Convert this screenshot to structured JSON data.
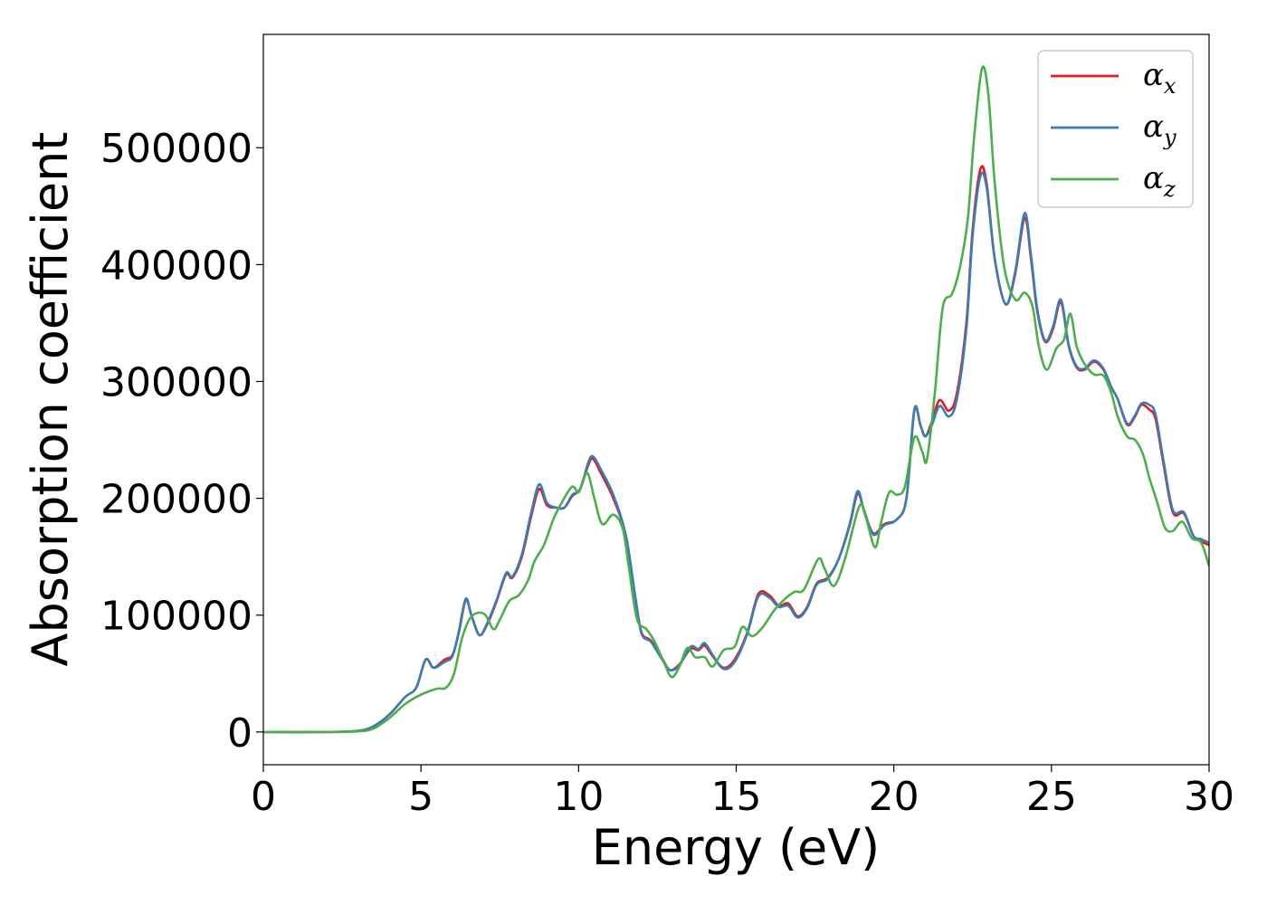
{
  "chart_data": {
    "type": "line",
    "xlabel": "Energy (eV)",
    "ylabel": "Absorption coefficient",
    "xlim": [
      0,
      30
    ],
    "ylim": [
      -28000,
      597000
    ],
    "xticks": [
      0,
      5,
      10,
      15,
      20,
      25,
      30
    ],
    "yticks": [
      0,
      100000,
      200000,
      300000,
      400000,
      500000
    ],
    "grid": false,
    "legend_position": "upper right",
    "series": [
      {
        "name": "αx",
        "base": "α",
        "sub": "x",
        "color": "#e41a1c",
        "points": [
          [
            0,
            0
          ],
          [
            2,
            0
          ],
          [
            3,
            1000
          ],
          [
            3.5,
            5000
          ],
          [
            4,
            15000
          ],
          [
            4.5,
            30000
          ],
          [
            4.85,
            38000
          ],
          [
            5.15,
            62000
          ],
          [
            5.4,
            55000
          ],
          [
            5.75,
            62000
          ],
          [
            6,
            66000
          ],
          [
            6.2,
            85000
          ],
          [
            6.42,
            113000
          ],
          [
            6.6,
            100000
          ],
          [
            6.85,
            83000
          ],
          [
            7.1,
            92000
          ],
          [
            7.4,
            112000
          ],
          [
            7.7,
            135000
          ],
          [
            7.9,
            132000
          ],
          [
            8.2,
            150000
          ],
          [
            8.5,
            185000
          ],
          [
            8.75,
            208000
          ],
          [
            9,
            194000
          ],
          [
            9.3,
            192000
          ],
          [
            9.55,
            192000
          ],
          [
            9.8,
            202000
          ],
          [
            10.05,
            208000
          ],
          [
            10.3,
            228000
          ],
          [
            10.45,
            234000
          ],
          [
            10.7,
            222000
          ],
          [
            11.1,
            200000
          ],
          [
            11.5,
            168000
          ],
          [
            11.8,
            115000
          ],
          [
            12,
            85000
          ],
          [
            12.3,
            78000
          ],
          [
            12.65,
            63000
          ],
          [
            12.9,
            53000
          ],
          [
            13.2,
            58000
          ],
          [
            13.55,
            71000
          ],
          [
            13.8,
            70000
          ],
          [
            14,
            74000
          ],
          [
            14.25,
            65000
          ],
          [
            14.6,
            55000
          ],
          [
            14.95,
            62000
          ],
          [
            15.35,
            85000
          ],
          [
            15.7,
            118000
          ],
          [
            16.05,
            117000
          ],
          [
            16.35,
            108000
          ],
          [
            16.65,
            110000
          ],
          [
            16.95,
            99000
          ],
          [
            17.25,
            107000
          ],
          [
            17.55,
            127000
          ],
          [
            17.9,
            132000
          ],
          [
            18.25,
            148000
          ],
          [
            18.6,
            177000
          ],
          [
            18.85,
            204000
          ],
          [
            19.05,
            190000
          ],
          [
            19.35,
            170000
          ],
          [
            19.7,
            178000
          ],
          [
            20.1,
            182000
          ],
          [
            20.4,
            200000
          ],
          [
            20.65,
            275000
          ],
          [
            20.85,
            262000
          ],
          [
            21,
            253000
          ],
          [
            21.2,
            265000
          ],
          [
            21.45,
            284000
          ],
          [
            21.75,
            275000
          ],
          [
            22,
            290000
          ],
          [
            22.3,
            350000
          ],
          [
            22.5,
            430000
          ],
          [
            22.75,
            482000
          ],
          [
            22.95,
            468000
          ],
          [
            23.2,
            405000
          ],
          [
            23.55,
            366000
          ],
          [
            23.85,
            392000
          ],
          [
            24.15,
            440000
          ],
          [
            24.35,
            405000
          ],
          [
            24.55,
            360000
          ],
          [
            24.8,
            334000
          ],
          [
            25.05,
            345000
          ],
          [
            25.3,
            368000
          ],
          [
            25.55,
            330000
          ],
          [
            25.8,
            312000
          ],
          [
            26.05,
            310000
          ],
          [
            26.35,
            317000
          ],
          [
            26.65,
            310000
          ],
          [
            26.9,
            295000
          ],
          [
            27.1,
            285000
          ],
          [
            27.4,
            263000
          ],
          [
            27.65,
            270000
          ],
          [
            27.85,
            280000
          ],
          [
            28.1,
            276000
          ],
          [
            28.3,
            268000
          ],
          [
            28.55,
            230000
          ],
          [
            28.85,
            188000
          ],
          [
            29.2,
            187000
          ],
          [
            29.5,
            168000
          ],
          [
            29.75,
            163000
          ],
          [
            30,
            160000
          ]
        ]
      },
      {
        "name": "αy",
        "base": "α",
        "sub": "y",
        "color": "#377eb8",
        "points": [
          [
            0,
            0
          ],
          [
            2,
            0
          ],
          [
            3,
            1000
          ],
          [
            3.5,
            5000
          ],
          [
            4,
            15000
          ],
          [
            4.5,
            30000
          ],
          [
            4.85,
            38000
          ],
          [
            5.15,
            62000
          ],
          [
            5.4,
            55000
          ],
          [
            5.75,
            60000
          ],
          [
            6,
            65000
          ],
          [
            6.2,
            86000
          ],
          [
            6.42,
            114000
          ],
          [
            6.6,
            100000
          ],
          [
            6.85,
            83000
          ],
          [
            7.1,
            93000
          ],
          [
            7.4,
            113000
          ],
          [
            7.7,
            136000
          ],
          [
            7.9,
            133000
          ],
          [
            8.2,
            152000
          ],
          [
            8.5,
            188000
          ],
          [
            8.75,
            212000
          ],
          [
            9,
            196000
          ],
          [
            9.3,
            192000
          ],
          [
            9.55,
            192000
          ],
          [
            9.8,
            203000
          ],
          [
            10.05,
            208000
          ],
          [
            10.3,
            230000
          ],
          [
            10.45,
            236000
          ],
          [
            10.7,
            225000
          ],
          [
            11.1,
            203000
          ],
          [
            11.5,
            168000
          ],
          [
            11.8,
            115000
          ],
          [
            12,
            84000
          ],
          [
            12.3,
            77000
          ],
          [
            12.65,
            62000
          ],
          [
            12.9,
            53000
          ],
          [
            13.2,
            57000
          ],
          [
            13.55,
            73000
          ],
          [
            13.8,
            71000
          ],
          [
            14,
            76000
          ],
          [
            14.25,
            66000
          ],
          [
            14.6,
            54000
          ],
          [
            14.95,
            60000
          ],
          [
            15.35,
            84000
          ],
          [
            15.7,
            116000
          ],
          [
            16.05,
            115000
          ],
          [
            16.35,
            107000
          ],
          [
            16.65,
            108000
          ],
          [
            16.95,
            98000
          ],
          [
            17.25,
            106000
          ],
          [
            17.55,
            126000
          ],
          [
            17.9,
            131000
          ],
          [
            18.25,
            148000
          ],
          [
            18.6,
            178000
          ],
          [
            18.85,
            206000
          ],
          [
            19.05,
            190000
          ],
          [
            19.35,
            169000
          ],
          [
            19.7,
            177000
          ],
          [
            20.1,
            182000
          ],
          [
            20.4,
            200000
          ],
          [
            20.65,
            276000
          ],
          [
            20.85,
            262000
          ],
          [
            21,
            253000
          ],
          [
            21.2,
            262000
          ],
          [
            21.45,
            279000
          ],
          [
            21.75,
            270000
          ],
          [
            22,
            285000
          ],
          [
            22.3,
            345000
          ],
          [
            22.5,
            425000
          ],
          [
            22.75,
            476000
          ],
          [
            22.95,
            465000
          ],
          [
            23.2,
            405000
          ],
          [
            23.55,
            366000
          ],
          [
            23.85,
            394000
          ],
          [
            24.15,
            444000
          ],
          [
            24.35,
            408000
          ],
          [
            24.55,
            362000
          ],
          [
            24.8,
            335000
          ],
          [
            25.05,
            347000
          ],
          [
            25.3,
            370000
          ],
          [
            25.55,
            331000
          ],
          [
            25.8,
            313000
          ],
          [
            26.05,
            311000
          ],
          [
            26.35,
            318000
          ],
          [
            26.65,
            311000
          ],
          [
            26.9,
            295000
          ],
          [
            27.1,
            285000
          ],
          [
            27.4,
            264000
          ],
          [
            27.65,
            271000
          ],
          [
            27.85,
            281000
          ],
          [
            28.1,
            280000
          ],
          [
            28.3,
            272000
          ],
          [
            28.55,
            233000
          ],
          [
            28.85,
            190000
          ],
          [
            29.2,
            188000
          ],
          [
            29.5,
            168000
          ],
          [
            29.75,
            165000
          ],
          [
            30,
            162000
          ]
        ]
      },
      {
        "name": "αz",
        "base": "α",
        "sub": "z",
        "color": "#4daf4a",
        "points": [
          [
            0,
            0
          ],
          [
            2,
            0
          ],
          [
            3,
            500
          ],
          [
            3.5,
            3000
          ],
          [
            4,
            12000
          ],
          [
            4.5,
            24000
          ],
          [
            5,
            32000
          ],
          [
            5.5,
            37000
          ],
          [
            5.8,
            38000
          ],
          [
            6.05,
            50000
          ],
          [
            6.3,
            80000
          ],
          [
            6.55,
            97000
          ],
          [
            6.8,
            102000
          ],
          [
            7.05,
            100000
          ],
          [
            7.3,
            88000
          ],
          [
            7.5,
            96000
          ],
          [
            7.8,
            112000
          ],
          [
            8.1,
            117000
          ],
          [
            8.4,
            130000
          ],
          [
            8.6,
            146000
          ],
          [
            8.9,
            160000
          ],
          [
            9.2,
            182000
          ],
          [
            9.5,
            198000
          ],
          [
            9.8,
            210000
          ],
          [
            10,
            205000
          ],
          [
            10.15,
            216000
          ],
          [
            10.3,
            221000
          ],
          [
            10.5,
            200000
          ],
          [
            10.75,
            178000
          ],
          [
            11.1,
            186000
          ],
          [
            11.4,
            174000
          ],
          [
            11.6,
            140000
          ],
          [
            11.85,
            97000
          ],
          [
            12.15,
            88000
          ],
          [
            12.4,
            78000
          ],
          [
            12.7,
            60000
          ],
          [
            12.95,
            47000
          ],
          [
            13.2,
            56000
          ],
          [
            13.45,
            72000
          ],
          [
            13.7,
            64000
          ],
          [
            14,
            64000
          ],
          [
            14.25,
            56000
          ],
          [
            14.6,
            70000
          ],
          [
            14.95,
            73000
          ],
          [
            15.2,
            90000
          ],
          [
            15.5,
            82000
          ],
          [
            15.85,
            90000
          ],
          [
            16.2,
            104000
          ],
          [
            16.55,
            114000
          ],
          [
            16.85,
            120000
          ],
          [
            17.15,
            122000
          ],
          [
            17.6,
            148000
          ],
          [
            17.8,
            140000
          ],
          [
            18.1,
            125000
          ],
          [
            18.45,
            148000
          ],
          [
            18.9,
            193000
          ],
          [
            19.1,
            185000
          ],
          [
            19.4,
            158000
          ],
          [
            19.6,
            180000
          ],
          [
            19.85,
            205000
          ],
          [
            20.1,
            203000
          ],
          [
            20.35,
            210000
          ],
          [
            20.65,
            252000
          ],
          [
            20.9,
            240000
          ],
          [
            21.05,
            233000
          ],
          [
            21.3,
            290000
          ],
          [
            21.55,
            363000
          ],
          [
            21.85,
            375000
          ],
          [
            22.1,
            398000
          ],
          [
            22.35,
            440000
          ],
          [
            22.55,
            510000
          ],
          [
            22.8,
            568000
          ],
          [
            23,
            545000
          ],
          [
            23.2,
            470000
          ],
          [
            23.5,
            398000
          ],
          [
            23.85,
            370000
          ],
          [
            24.15,
            376000
          ],
          [
            24.4,
            364000
          ],
          [
            24.6,
            330000
          ],
          [
            24.85,
            310000
          ],
          [
            25.15,
            328000
          ],
          [
            25.4,
            336000
          ],
          [
            25.6,
            358000
          ],
          [
            25.8,
            330000
          ],
          [
            26.05,
            315000
          ],
          [
            26.35,
            306000
          ],
          [
            26.65,
            305000
          ],
          [
            26.9,
            290000
          ],
          [
            27.1,
            270000
          ],
          [
            27.4,
            253000
          ],
          [
            27.65,
            250000
          ],
          [
            27.9,
            238000
          ],
          [
            28.1,
            218000
          ],
          [
            28.35,
            197000
          ],
          [
            28.6,
            175000
          ],
          [
            28.85,
            172000
          ],
          [
            29.15,
            180000
          ],
          [
            29.45,
            166000
          ],
          [
            29.75,
            162000
          ],
          [
            30,
            142000
          ]
        ]
      }
    ]
  }
}
